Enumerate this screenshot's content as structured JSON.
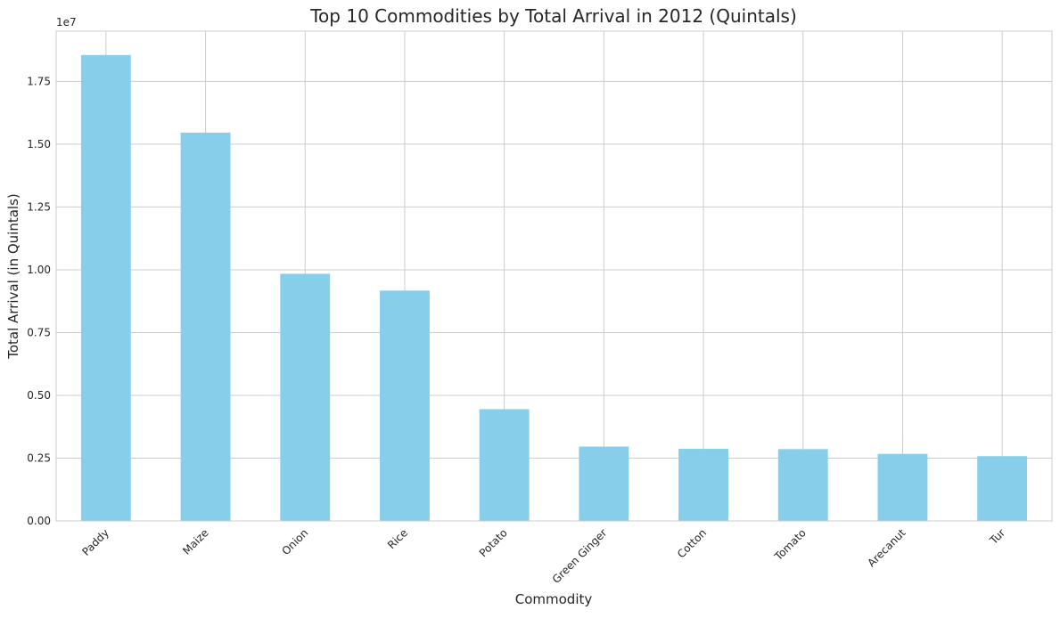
{
  "chart_data": {
    "type": "bar",
    "title": "Top 10 Commodities by Total Arrival in 2012 (Quintals)",
    "xlabel": "Commodity",
    "ylabel": "Total Arrival (in Quintals)",
    "y_offset_label": "1e7",
    "categories": [
      "Paddy",
      "Maize",
      "Onion",
      "Rice",
      "Potato",
      "Green Ginger",
      "Cotton",
      "Tomato",
      "Arecanut",
      "Tur"
    ],
    "values": [
      18550000,
      15460000,
      9840000,
      9170000,
      4450000,
      2960000,
      2870000,
      2860000,
      2670000,
      2580000
    ],
    "ylim": [
      0,
      19500000
    ],
    "yticks": [
      0,
      2500000,
      5000000,
      7500000,
      10000000,
      12500000,
      15000000,
      17500000
    ],
    "ytick_labels": [
      "0.00",
      "0.25",
      "0.50",
      "0.75",
      "1.00",
      "1.25",
      "1.50",
      "1.75"
    ],
    "grid": true,
    "bar_color": "#87ceeb",
    "grid_color": "#cccccc",
    "axis_color": "#cccccc",
    "text_color": "#262626"
  }
}
